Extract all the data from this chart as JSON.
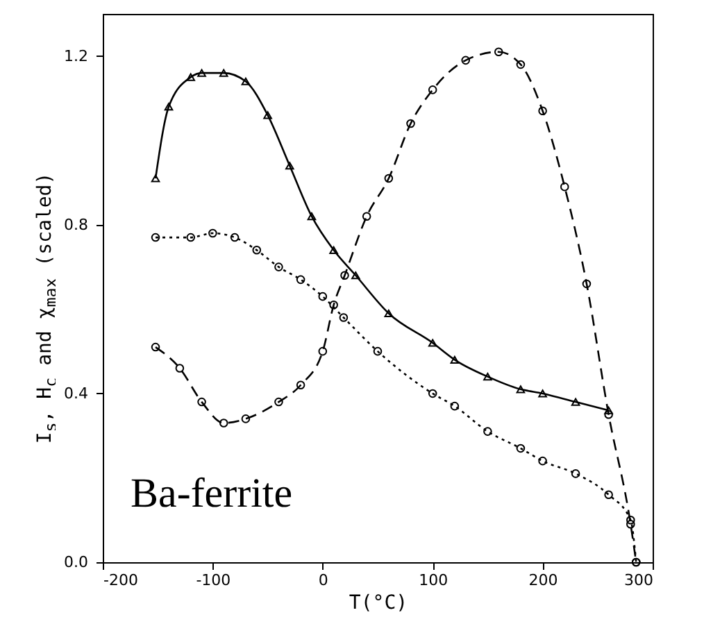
{
  "chart_data": {
    "type": "line",
    "xlabel": "T(°C)",
    "ylabel": "I$_{s}$, H$_{c}$ and χ$_{max}$ (scaled)",
    "xlim": [
      -200,
      300
    ],
    "xticks": [
      -200,
      -100,
      0,
      100,
      200,
      300
    ],
    "ylim": [
      0,
      1.3
    ],
    "yticks": [
      {
        "value": 0,
        "label": "0.0"
      },
      {
        "value": 0.4,
        "label": "0.4"
      },
      {
        "value": 0.8,
        "label": "0.8"
      },
      {
        "value": 1.2,
        "label": "1.2"
      }
    ],
    "grid": false,
    "legend": false,
    "annotations": [
      "Ba-ferrite"
    ],
    "series": [
      {
        "color": "#000000",
        "line_style": "solid",
        "marker": "triangle",
        "x": [
          -152,
          -140,
          -120,
          -110,
          -90,
          -70,
          -50,
          -30,
          -10,
          10,
          30,
          60,
          100,
          120,
          150,
          180,
          200,
          230,
          260
        ],
        "values": [
          0.91,
          1.08,
          1.15,
          1.16,
          1.16,
          1.14,
          1.06,
          0.94,
          0.82,
          0.74,
          0.68,
          0.59,
          0.52,
          0.48,
          0.44,
          0.41,
          0.4,
          0.38,
          0.36
        ]
      },
      {
        "color": "#000000",
        "line_style": "dashed",
        "marker": "circle",
        "x": [
          -152,
          -130,
          -110,
          -90,
          -70,
          -40,
          -20,
          0,
          10,
          20,
          40,
          60,
          80,
          100,
          130,
          160,
          180,
          200,
          220,
          240,
          260,
          280,
          285
        ],
        "values": [
          0.51,
          0.46,
          0.38,
          0.33,
          0.34,
          0.38,
          0.42,
          0.5,
          0.61,
          0.68,
          0.82,
          0.91,
          1.04,
          1.12,
          1.19,
          1.21,
          1.18,
          1.07,
          0.89,
          0.66,
          0.35,
          0.09,
          0.0
        ]
      },
      {
        "color": "#000000",
        "line_style": "dotted",
        "marker": "circle",
        "x": [
          -152,
          -120,
          -100,
          -80,
          -60,
          -40,
          -20,
          0,
          19,
          50,
          100,
          120,
          150,
          180,
          200,
          230,
          260,
          280,
          285
        ],
        "values": [
          0.77,
          0.77,
          0.78,
          0.77,
          0.74,
          0.7,
          0.67,
          0.63,
          0.58,
          0.5,
          0.4,
          0.37,
          0.31,
          0.27,
          0.24,
          0.21,
          0.16,
          0.1,
          0.0
        ]
      }
    ]
  }
}
